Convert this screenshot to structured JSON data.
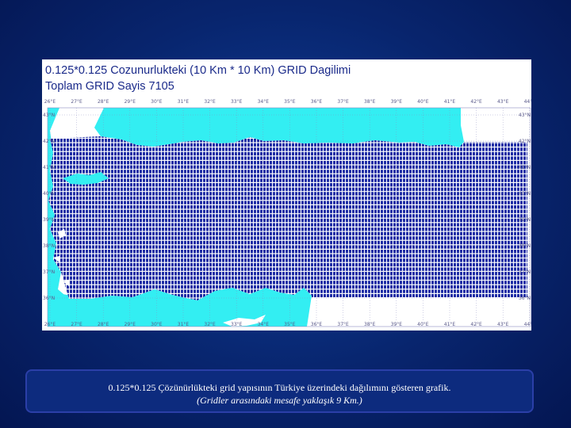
{
  "map": {
    "title_line1": "0.125*0.125 Cozunurlukteki (10 Km * 10 Km) GRID Dagilimi",
    "title_line2": "Toplam GRID Sayis 7105",
    "lon_labels": [
      "26°E",
      "27°E",
      "28°E",
      "29°E",
      "30°E",
      "31°E",
      "32°E",
      "33°E",
      "34°E",
      "35°E",
      "36°E",
      "37°E",
      "38°E",
      "39°E",
      "40°E",
      "41°E",
      "42°E",
      "43°E",
      "44°E"
    ],
    "lat_labels_left": [
      "43°N",
      "42°N",
      "41°N",
      "40°N",
      "39°N",
      "38°N",
      "37°N",
      "36°N"
    ],
    "lat_labels_right": [
      "43°N",
      "42°N",
      "41°N",
      "40°N",
      "39°N",
      "38°N",
      "37°N",
      "36°N"
    ],
    "colors": {
      "sea": "#33eef2",
      "grid": "#1c2ba4",
      "land_bg": "#ffffff",
      "graticule": "#8a8ac0"
    },
    "region": "Turkey",
    "grid_resolution_deg": 0.125
  },
  "caption": {
    "line1": "0.125*0.125 Çözünürlükteki grid yapısının Türkiye üzerindeki dağılımını gösteren grafik.",
    "line2": "(Gridler arasındaki mesafe yaklaşık 9 Km.)"
  }
}
